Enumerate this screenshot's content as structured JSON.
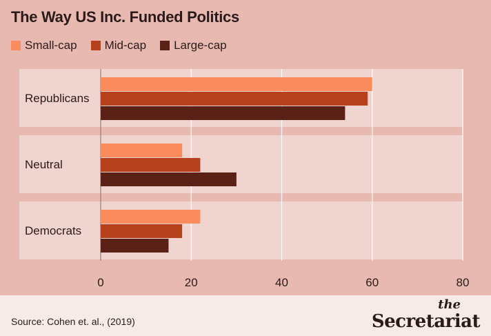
{
  "title": "The Way US Inc. Funded Politics",
  "colors": {
    "background": "#e8b9b0",
    "panel": "#f0d4cf",
    "footer": "#f7ebe8",
    "small_cap": "#fb8c5e",
    "mid_cap": "#b5421d",
    "large_cap": "#5a2217"
  },
  "source": "Source: Cohen et. al., (2019)",
  "brand": {
    "small": "the",
    "big": "Secretariat"
  },
  "chart_data": {
    "type": "bar",
    "orientation": "horizontal",
    "categories": [
      "Republicans",
      "Neutral",
      "Democrats"
    ],
    "series": [
      {
        "name": "Small-cap",
        "values": [
          60,
          18,
          22
        ]
      },
      {
        "name": "Mid-cap",
        "values": [
          59,
          22,
          18
        ]
      },
      {
        "name": "Large-cap",
        "values": [
          54,
          30,
          15
        ]
      }
    ],
    "xlim": [
      0,
      80
    ],
    "xticks": [
      "0",
      "20",
      "40",
      "60",
      "80"
    ],
    "legend": "top-left",
    "grid": true
  }
}
